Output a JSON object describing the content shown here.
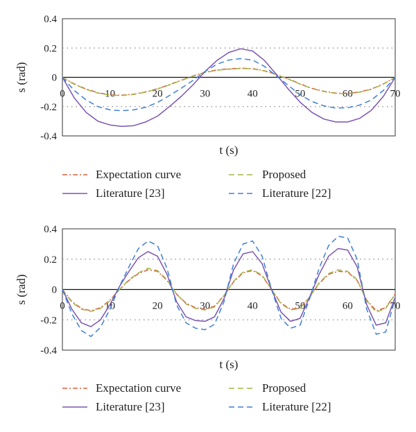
{
  "chart_data": [
    {
      "type": "line",
      "title": "",
      "xlabel": "t (s)",
      "ylabel": "s (rad)",
      "xlim": [
        0,
        70
      ],
      "ylim": [
        -0.4,
        0.4
      ],
      "xticks": [
        "0",
        "10",
        "20",
        "30",
        "40",
        "50",
        "60",
        "70"
      ],
      "yticks": [
        "0.4",
        "0.2",
        "0",
        "-0.2",
        "-0.4"
      ],
      "grid": "dotted horizontal at ±0.2",
      "legend_position": "below",
      "series": [
        {
          "name": "Expectation curve",
          "style": "dashdot",
          "color": "#d9603b",
          "x": [
            0,
            2.5,
            5,
            7.5,
            10,
            12.5,
            15,
            17.5,
            20,
            22.5,
            25,
            27.5,
            30,
            32.5,
            35,
            37.5,
            40,
            42.5,
            45,
            47.5,
            50,
            52.5,
            55,
            57.5,
            60,
            62.5,
            65,
            67.5,
            70
          ],
          "y": [
            0,
            -0.045,
            -0.08,
            -0.105,
            -0.12,
            -0.122,
            -0.115,
            -0.1,
            -0.078,
            -0.05,
            -0.02,
            0.01,
            0.035,
            0.05,
            0.058,
            0.062,
            0.06,
            0.045,
            0.02,
            -0.01,
            -0.045,
            -0.075,
            -0.095,
            -0.108,
            -0.11,
            -0.1,
            -0.08,
            -0.045,
            0
          ]
        },
        {
          "name": "Proposed",
          "style": "dashed",
          "color": "#a3b545",
          "x": [
            0,
            2.5,
            5,
            7.5,
            10,
            12.5,
            15,
            17.5,
            20,
            22.5,
            25,
            27.5,
            30,
            32.5,
            35,
            37.5,
            40,
            42.5,
            45,
            47.5,
            50,
            52.5,
            55,
            57.5,
            60,
            62.5,
            65,
            67.5,
            70
          ],
          "y": [
            0,
            -0.048,
            -0.083,
            -0.108,
            -0.122,
            -0.124,
            -0.117,
            -0.102,
            -0.08,
            -0.052,
            -0.022,
            0.008,
            0.033,
            0.048,
            0.056,
            0.06,
            0.058,
            0.043,
            0.018,
            -0.012,
            -0.047,
            -0.077,
            -0.097,
            -0.11,
            -0.112,
            -0.102,
            -0.082,
            -0.047,
            0
          ]
        },
        {
          "name": "Literature [23]",
          "style": "solid",
          "color": "#7b55b0",
          "x": [
            0,
            2.5,
            5,
            7.5,
            10,
            12.5,
            15,
            17.5,
            20,
            22.5,
            25,
            27.5,
            30,
            32.5,
            35,
            37.5,
            40,
            42.5,
            45,
            47.5,
            50,
            52.5,
            55,
            57.5,
            60,
            62.5,
            65,
            67.5,
            70
          ],
          "y": [
            0,
            -0.14,
            -0.24,
            -0.3,
            -0.325,
            -0.335,
            -0.33,
            -0.305,
            -0.265,
            -0.2,
            -0.13,
            -0.05,
            0.04,
            0.115,
            0.17,
            0.195,
            0.18,
            0.115,
            0.02,
            -0.08,
            -0.17,
            -0.24,
            -0.285,
            -0.305,
            -0.305,
            -0.28,
            -0.225,
            -0.13,
            0
          ]
        },
        {
          "name": "Literature [22]",
          "style": "dashed",
          "color": "#3f7fd6",
          "x": [
            0,
            2.5,
            5,
            7.5,
            10,
            12.5,
            15,
            17.5,
            20,
            22.5,
            25,
            27.5,
            30,
            32.5,
            35,
            37.5,
            40,
            42.5,
            45,
            47.5,
            50,
            52.5,
            55,
            57.5,
            60,
            62.5,
            65,
            67.5,
            70
          ],
          "y": [
            0,
            -0.09,
            -0.155,
            -0.2,
            -0.222,
            -0.228,
            -0.222,
            -0.205,
            -0.172,
            -0.125,
            -0.075,
            -0.02,
            0.04,
            0.09,
            0.118,
            0.128,
            0.118,
            0.075,
            0.01,
            -0.055,
            -0.12,
            -0.165,
            -0.195,
            -0.21,
            -0.208,
            -0.19,
            -0.155,
            -0.09,
            0
          ]
        }
      ]
    },
    {
      "type": "line",
      "title": "",
      "xlabel": "t (s)",
      "ylabel": "s (rad)",
      "xlim": [
        0,
        70
      ],
      "ylim": [
        -0.4,
        0.4
      ],
      "xticks": [
        "0",
        "10",
        "20",
        "30",
        "40",
        "50",
        "60",
        "70"
      ],
      "yticks": [
        "0.4",
        "0.2",
        "0",
        "-0.2",
        "-0.4"
      ],
      "grid": "dotted horizontal at ±0.2",
      "legend_position": "below",
      "series": [
        {
          "name": "Expectation curve",
          "style": "dashdot",
          "color": "#d9603b",
          "x": [
            0,
            2,
            4,
            6,
            8,
            10,
            12,
            14,
            16,
            18,
            20,
            22,
            24,
            26,
            28,
            30,
            32,
            34,
            36,
            38,
            40,
            42,
            44,
            46,
            48,
            50,
            52,
            54,
            56,
            58,
            60,
            62,
            64,
            66,
            68,
            70
          ],
          "y": [
            0,
            -0.08,
            -0.125,
            -0.14,
            -0.12,
            -0.07,
            0,
            0.06,
            0.105,
            0.13,
            0.12,
            0.06,
            -0.03,
            -0.09,
            -0.12,
            -0.13,
            -0.11,
            -0.04,
            0.05,
            0.11,
            0.125,
            0.09,
            0.0,
            -0.09,
            -0.13,
            -0.12,
            -0.05,
            0.04,
            0.1,
            0.12,
            0.115,
            0.06,
            -0.07,
            -0.14,
            -0.12,
            -0.03
          ]
        },
        {
          "name": "Proposed",
          "style": "dashed",
          "color": "#a3b545",
          "x": [
            0,
            2,
            4,
            6,
            8,
            10,
            12,
            14,
            16,
            18,
            20,
            22,
            24,
            26,
            28,
            30,
            32,
            34,
            36,
            38,
            40,
            42,
            44,
            46,
            48,
            50,
            52,
            54,
            56,
            58,
            60,
            62,
            64,
            66,
            68,
            70
          ],
          "y": [
            0,
            -0.085,
            -0.13,
            -0.145,
            -0.125,
            -0.075,
            0,
            0.065,
            0.11,
            0.14,
            0.125,
            0.065,
            -0.03,
            -0.095,
            -0.125,
            -0.135,
            -0.115,
            -0.04,
            0.055,
            0.115,
            0.13,
            0.095,
            0.0,
            -0.095,
            -0.135,
            -0.125,
            -0.05,
            0.045,
            0.105,
            0.13,
            0.12,
            0.065,
            -0.075,
            -0.15,
            -0.125,
            -0.03
          ]
        },
        {
          "name": "Literature [23]",
          "style": "solid",
          "color": "#7b55b0",
          "x": [
            0,
            2,
            4,
            6,
            8,
            10,
            12,
            14,
            16,
            18,
            20,
            22,
            24,
            26,
            28,
            30,
            32,
            34,
            36,
            38,
            40,
            42,
            44,
            46,
            48,
            50,
            52,
            54,
            56,
            58,
            60,
            62,
            64,
            66,
            68,
            70
          ],
          "y": [
            0,
            -0.13,
            -0.22,
            -0.245,
            -0.2,
            -0.1,
            0.02,
            0.12,
            0.21,
            0.25,
            0.22,
            0.1,
            -0.08,
            -0.18,
            -0.205,
            -0.21,
            -0.18,
            -0.06,
            0.13,
            0.235,
            0.25,
            0.17,
            0.0,
            -0.15,
            -0.21,
            -0.19,
            -0.05,
            0.1,
            0.22,
            0.27,
            0.26,
            0.15,
            -0.1,
            -0.235,
            -0.22,
            -0.05
          ]
        },
        {
          "name": "Literature [22]",
          "style": "dashed",
          "color": "#3f7fd6",
          "x": [
            0,
            2,
            4,
            6,
            8,
            10,
            12,
            14,
            16,
            18,
            20,
            22,
            24,
            26,
            28,
            30,
            32,
            34,
            36,
            38,
            40,
            42,
            44,
            46,
            48,
            50,
            52,
            54,
            56,
            58,
            60,
            62,
            64,
            66,
            68,
            70
          ],
          "y": [
            0,
            -0.16,
            -0.27,
            -0.31,
            -0.25,
            -0.13,
            0.02,
            0.15,
            0.27,
            0.32,
            0.29,
            0.14,
            -0.1,
            -0.22,
            -0.255,
            -0.265,
            -0.23,
            -0.08,
            0.17,
            0.3,
            0.32,
            0.22,
            0.0,
            -0.19,
            -0.255,
            -0.235,
            -0.06,
            0.14,
            0.29,
            0.35,
            0.34,
            0.2,
            -0.13,
            -0.295,
            -0.28,
            -0.06
          ]
        }
      ]
    }
  ]
}
